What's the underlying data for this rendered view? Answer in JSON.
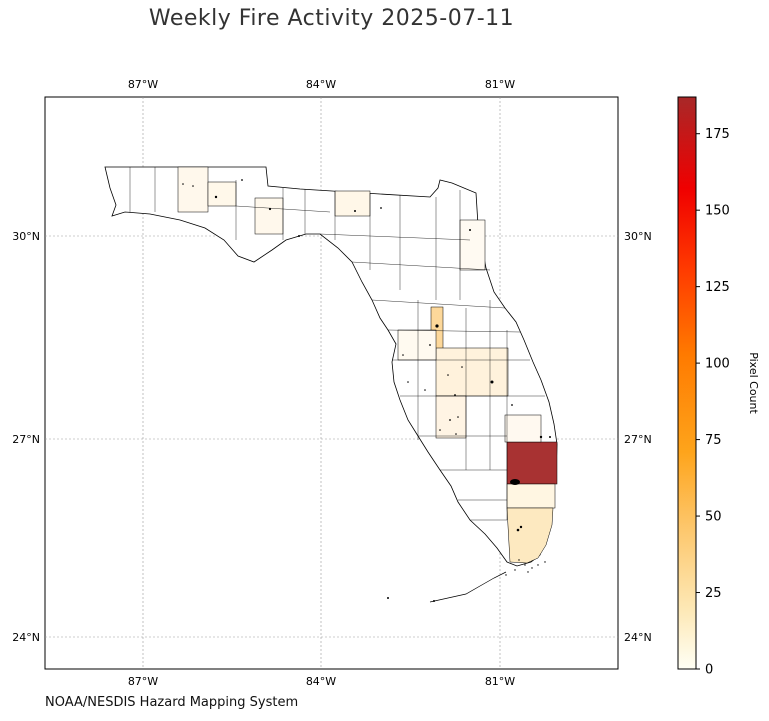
{
  "title": "Weekly Fire Activity 2025-07-11",
  "source": "NOAA/NESDIS Hazard Mapping System",
  "map": {
    "region": "Florida",
    "lon_range": [
      -88.1,
      -81.7
    ],
    "lat_range": [
      23.5,
      31.9
    ],
    "lon_ticks": [
      {
        "value": -87,
        "label": "87°W"
      },
      {
        "value": -84,
        "label": "84°W"
      },
      {
        "value": -81,
        "label": "81°W"
      }
    ],
    "lat_ticks": [
      {
        "value": 30,
        "label": "30°N"
      },
      {
        "value": 27,
        "label": "27°N"
      },
      {
        "value": 24,
        "label": "24°N"
      }
    ],
    "grid": true
  },
  "colorbar": {
    "label": "Pixel Count",
    "min": 0,
    "max": 187,
    "ticks": [
      "0",
      "25",
      "50",
      "75",
      "100",
      "125",
      "150",
      "175"
    ],
    "colormap": [
      "#fffff5",
      "#fde9b8",
      "#fdc66a",
      "#fea41b",
      "#ff7a00",
      "#ff3a00",
      "#f00000",
      "#a82828"
    ]
  },
  "colors": {
    "highest_county": "#a83232",
    "frame": "#000000",
    "grid": "#999999"
  }
}
